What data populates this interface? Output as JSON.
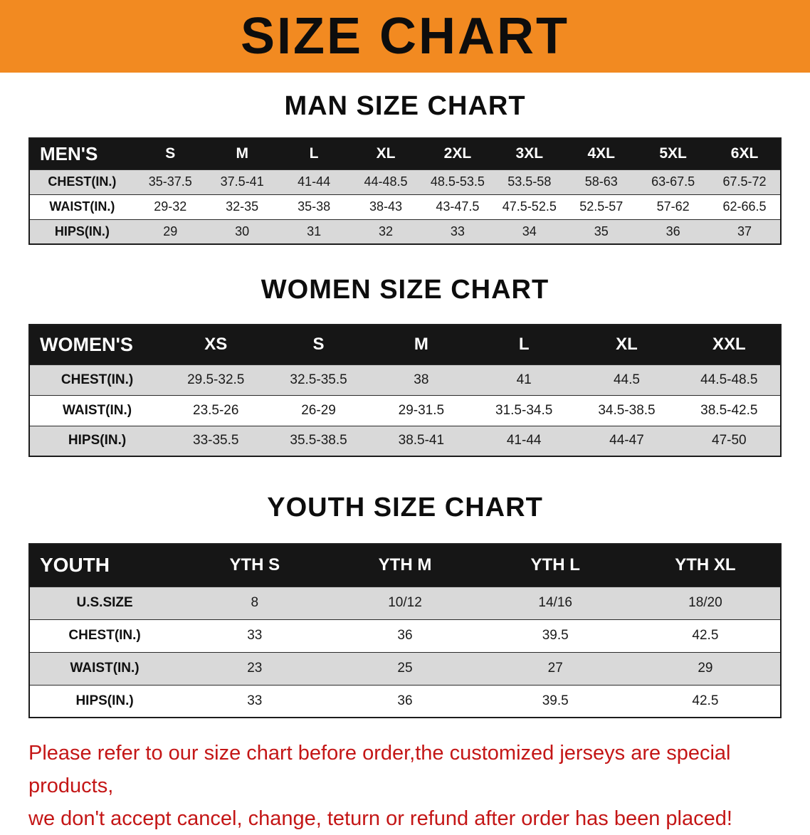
{
  "banner": {
    "title": "SIZE CHART"
  },
  "colors": {
    "banner_bg": "#f28a21",
    "table_header_bg": "#161616",
    "stripe_row_bg": "#d9d9d9",
    "disclaimer_text": "#c41616"
  },
  "sections": [
    {
      "heading": "MAN SIZE CHART",
      "table": {
        "header": [
          "MEN'S",
          "S",
          "M",
          "L",
          "XL",
          "2XL",
          "3XL",
          "4XL",
          "5XL",
          "6XL"
        ],
        "rows": [
          [
            "CHEST(IN.)",
            "35-37.5",
            "37.5-41",
            "41-44",
            "44-48.5",
            "48.5-53.5",
            "53.5-58",
            "58-63",
            "63-67.5",
            "67.5-72"
          ],
          [
            "WAIST(IN.)",
            "29-32",
            "32-35",
            "35-38",
            "38-43",
            "43-47.5",
            "47.5-52.5",
            "52.5-57",
            "57-62",
            "62-66.5"
          ],
          [
            "HIPS(IN.)",
            "29",
            "30",
            "31",
            "32",
            "33",
            "34",
            "35",
            "36",
            "37"
          ]
        ]
      }
    },
    {
      "heading": "WOMEN SIZE CHART",
      "table": {
        "header": [
          "WOMEN'S",
          "XS",
          "S",
          "M",
          "L",
          "XL",
          "XXL"
        ],
        "rows": [
          [
            "CHEST(IN.)",
            "29.5-32.5",
            "32.5-35.5",
            "38",
            "41",
            "44.5",
            "44.5-48.5"
          ],
          [
            "WAIST(IN.)",
            "23.5-26",
            "26-29",
            "29-31.5",
            "31.5-34.5",
            "34.5-38.5",
            "38.5-42.5"
          ],
          [
            "HIPS(IN.)",
            "33-35.5",
            "35.5-38.5",
            "38.5-41",
            "41-44",
            "44-47",
            "47-50"
          ]
        ]
      }
    },
    {
      "heading": "YOUTH SIZE CHART",
      "table": {
        "header": [
          "YOUTH",
          "YTH S",
          "YTH M",
          "YTH L",
          "YTH XL"
        ],
        "rows": [
          [
            "U.S.SIZE",
            "8",
            "10/12",
            "14/16",
            "18/20"
          ],
          [
            "CHEST(IN.)",
            "33",
            "36",
            "39.5",
            "42.5"
          ],
          [
            "WAIST(IN.)",
            "23",
            "25",
            "27",
            "29"
          ],
          [
            "HIPS(IN.)",
            "33",
            "36",
            "39.5",
            "42.5"
          ]
        ]
      }
    }
  ],
  "disclaimer": {
    "line1": "Please refer to our size chart before order,the customized jerseys are special products,",
    "line2": "we don't accept cancel, change, teturn or refund after order has been placed!"
  }
}
